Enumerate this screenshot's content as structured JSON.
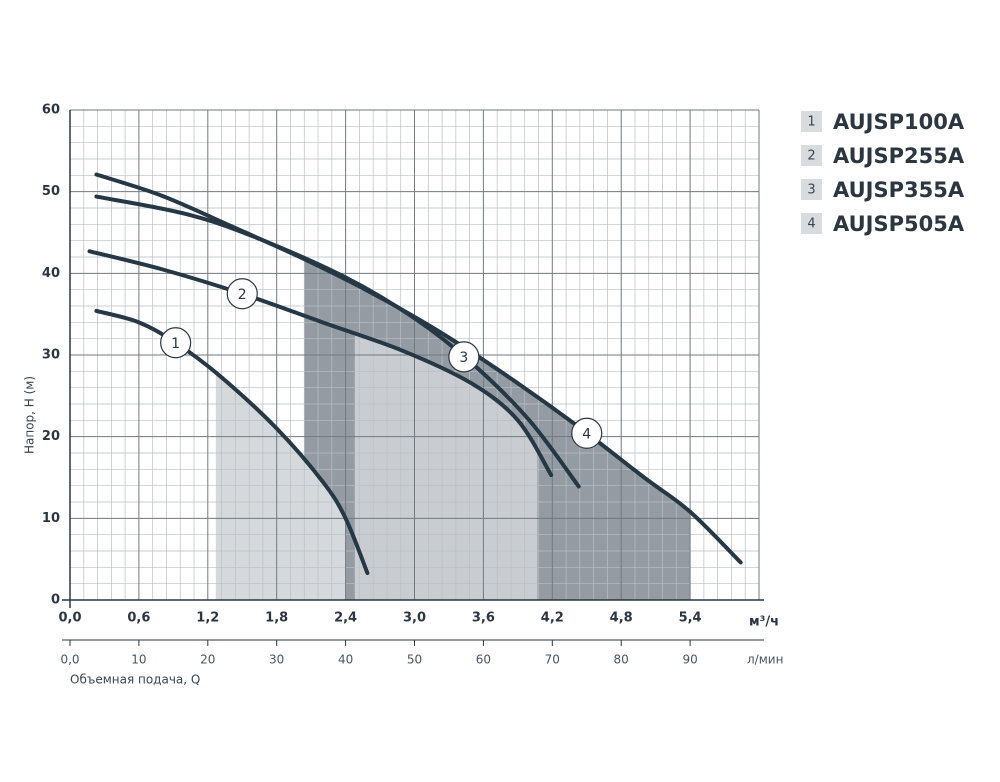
{
  "chart_data": {
    "type": "line",
    "y_label": "Напор, H (м)",
    "x_label": "Объемная подача, Q",
    "x_unit": "м³/ч",
    "x2_unit": "л/мин",
    "xlim": [
      0,
      6.0
    ],
    "xticks": [
      {
        "value": 0,
        "label": "0,0"
      },
      {
        "value": 0.6,
        "label": "0,6"
      },
      {
        "value": 1.2,
        "label": "1,2"
      },
      {
        "value": 1.8,
        "label": "1,8"
      },
      {
        "value": 2.4,
        "label": "2,4"
      },
      {
        "value": 3.0,
        "label": "3,0"
      },
      {
        "value": 3.6,
        "label": "3,6"
      },
      {
        "value": 4.2,
        "label": "4,2"
      },
      {
        "value": 4.8,
        "label": "4,8"
      },
      {
        "value": 5.4,
        "label": "5,4"
      }
    ],
    "x2lim": [
      0,
      100
    ],
    "x2ticks": [
      {
        "value": 0,
        "label": "0,0"
      },
      10,
      20,
      30,
      40,
      50,
      60,
      70,
      80,
      90
    ],
    "ylim": [
      0,
      60
    ],
    "yticks": [
      0,
      10,
      20,
      30,
      40,
      50,
      60
    ],
    "grid": true,
    "series": [
      {
        "name": "AUJSP100A",
        "key": "1",
        "color": "#263845",
        "range": [
          1.27,
          2.4
        ],
        "range_color": "#d6d9dc",
        "x": [
          0.23,
          0.6,
          0.92,
          1.3,
          1.8,
          2.2,
          2.4,
          2.59
        ],
        "values": [
          35.4,
          34,
          31.5,
          27.5,
          21,
          14.5,
          10,
          3.3
        ]
      },
      {
        "name": "AUJSP255A",
        "key": "2",
        "color": "#263845",
        "range": [
          2.48,
          4.07
        ],
        "range_color": "#c9cdd1",
        "x": [
          0.17,
          0.8,
          1.5,
          2.2,
          2.9,
          3.5,
          3.9,
          4.19
        ],
        "values": [
          42.7,
          40.5,
          37.5,
          34,
          30.5,
          26.5,
          22,
          15.3
        ]
      },
      {
        "name": "AUJSP355A",
        "key": "3",
        "color": "#263845",
        "x": [
          0.23,
          1.0,
          1.6,
          2.4,
          3.0,
          3.5,
          4.0,
          4.43
        ],
        "values": [
          49.4,
          47.3,
          44.5,
          39.5,
          34.5,
          29,
          22,
          13.9
        ]
      },
      {
        "name": "AUJSP505A",
        "key": "4",
        "color": "#263845",
        "range": [
          2.04,
          5.4
        ],
        "range_color": "#949ba2",
        "x": [
          0.23,
          0.8,
          1.4,
          2.0,
          2.6,
          3.2,
          3.8,
          4.4,
          5.0,
          5.4,
          5.84
        ],
        "values": [
          52.1,
          49.5,
          45.8,
          42,
          37.8,
          33,
          27.5,
          21.5,
          15,
          10.8,
          4.6
        ]
      }
    ]
  }
}
